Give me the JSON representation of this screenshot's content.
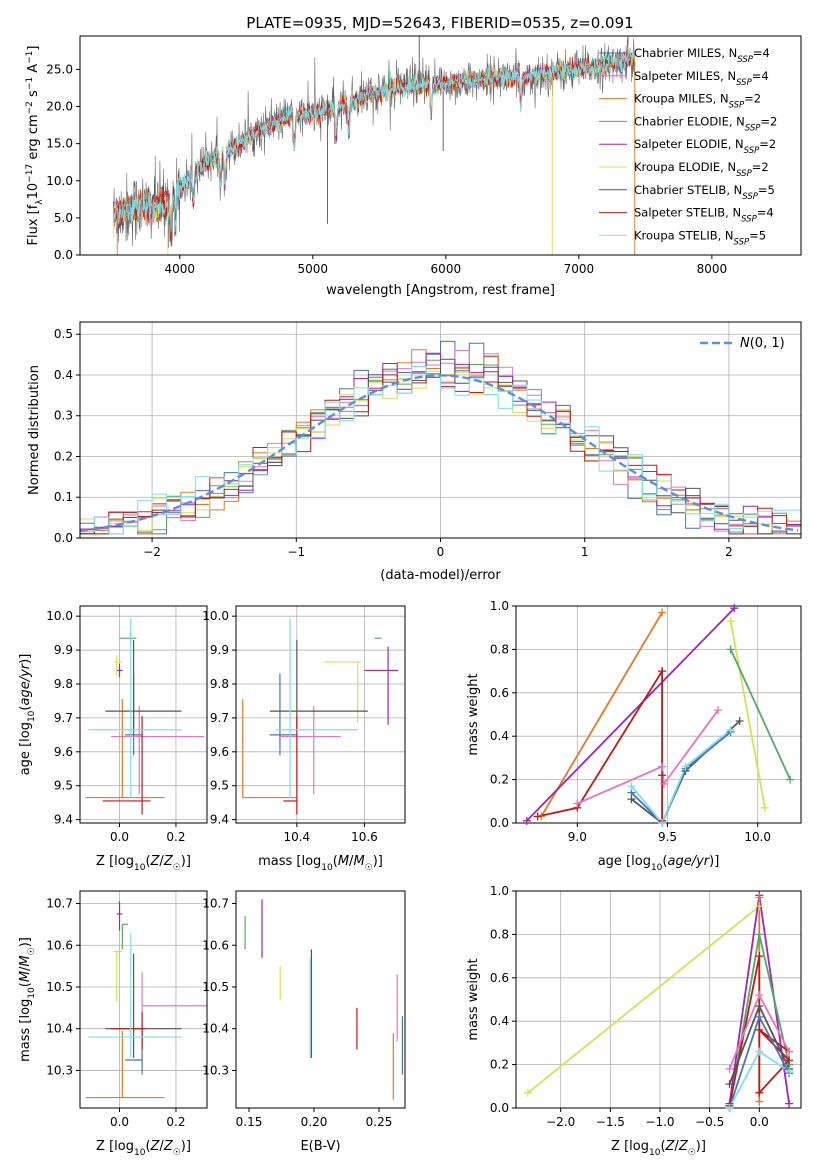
{
  "figure_title": "PLATE=0935, MJD=52643, FIBERID=0535, z=0.091",
  "colors": [
    "#4c72b0",
    "#dd8452",
    "#e07b2a",
    "#55a868",
    "#9c27b0",
    "#d4e157",
    "#555555",
    "#b71c1c",
    "#80deea"
  ],
  "pink": "#e377c2",
  "models": [
    {
      "name": "Chabrier MILES, N_SSP=4",
      "prefix": "Chabrier MILES, N",
      "sub": "SSP",
      "suffix": "=4",
      "color": "#4c72b0"
    },
    {
      "name": "Salpeter MILES, N_SSP=4",
      "prefix": "Salpeter MILES, N",
      "sub": "SSP",
      "suffix": "=4",
      "color": "#e377c2"
    },
    {
      "name": "Kroupa MILES, N_SSP=2",
      "prefix": "Kroupa MILES, N",
      "sub": "SSP",
      "suffix": "=2",
      "color": "#e07b2a"
    },
    {
      "name": "Chabrier ELODIE, N_SSP=2",
      "prefix": "Chabrier ELODIE, N",
      "sub": "SSP",
      "suffix": "=2",
      "color": "#55a868"
    },
    {
      "name": "Salpeter ELODIE, N_SSP=2",
      "prefix": "Salpeter ELODIE, N",
      "sub": "SSP",
      "suffix": "=2",
      "color": "#9c27b0"
    },
    {
      "name": "Kroupa ELODIE, N_SSP=2",
      "prefix": "Kroupa ELODIE, N",
      "sub": "SSP",
      "suffix": "=2",
      "color": "#d4e157"
    },
    {
      "name": "Chabrier STELIB, N_SSP=5",
      "prefix": "Chabrier STELIB, N",
      "sub": "SSP",
      "suffix": "=5",
      "color": "#555555"
    },
    {
      "name": "Salpeter STELIB, N_SSP=4",
      "prefix": "Salpeter STELIB, N",
      "sub": "SSP",
      "suffix": "=4",
      "color": "#b71c1c"
    },
    {
      "name": "Kroupa STELIB, N_SSP=5",
      "prefix": "Kroupa STELIB, N",
      "sub": "SSP",
      "suffix": "=5",
      "color": "#80deea"
    }
  ],
  "chart_data": [
    {
      "id": "spectrum",
      "type": "line",
      "xlabel": "wavelength [Angstrom, rest frame]",
      "ylabel": "Flux [f_λ 10^-17 erg cm^-2 s^-1 A^-1]",
      "xlim": [
        3250,
        8670
      ],
      "ylim": [
        0,
        29.5
      ],
      "xticks": [
        4000,
        5000,
        6000,
        7000,
        8000
      ],
      "yticks": [
        0,
        5,
        10,
        15,
        20,
        25
      ],
      "grid": false,
      "legend": "top-right",
      "continuum_x": [
        3500,
        3700,
        3900,
        4000,
        4200,
        4400,
        4600,
        4800,
        5000,
        5200,
        5400,
        5600,
        5800,
        6000,
        6200,
        6400,
        6600,
        6800,
        7000,
        7200,
        7400
      ],
      "continuum_y": [
        5.5,
        6.5,
        6.8,
        9.0,
        12.5,
        14.5,
        16.8,
        18.5,
        19.0,
        20.0,
        21.5,
        22.5,
        23.0,
        23.0,
        23.5,
        24.0,
        24.0,
        24.5,
        25.0,
        25.5,
        26.5
      ]
    },
    {
      "id": "residuals",
      "type": "histogram",
      "xlabel": "(data-model)/error",
      "ylabel": "Normed distribution",
      "xlim": [
        -2.5,
        2.5
      ],
      "ylim": [
        0,
        0.53
      ],
      "xticks": [
        -2,
        -1,
        0,
        1,
        2
      ],
      "yticks": [
        0.0,
        0.1,
        0.2,
        0.3,
        0.4,
        0.5
      ],
      "grid": true,
      "legend": "top-right",
      "legend_label": "N(0,1)",
      "bin_width": 0.1
    },
    {
      "id": "age_vs_Z",
      "type": "errorbar",
      "xlabel": "Z [log10(Z/Z☉)]",
      "ylabel": "age [log10(age/yr)]",
      "xlim": [
        -0.14,
        0.31
      ],
      "ylim": [
        9.39,
        10.03
      ],
      "xticks": [
        0.0,
        0.2
      ],
      "yticks": [
        9.4,
        9.5,
        9.6,
        9.7,
        9.8,
        9.9,
        10.0
      ],
      "grid": true,
      "points": [
        {
          "c": "#4c72b0",
          "x": 0.05,
          "xe": [
            0.03,
            0.03
          ],
          "y": 9.65,
          "ye": [
            0.06,
            0.18
          ]
        },
        {
          "c": "#e377c2",
          "x": 0.07,
          "xe": [
            0.1,
            0.23
          ],
          "y": 9.645,
          "ye": [
            0.17,
            0.09
          ]
        },
        {
          "c": "#e07b2a",
          "x": 0.01,
          "xe": [
            0.13,
            0.15
          ],
          "y": 9.465,
          "ye": [
            0.0,
            0.29
          ]
        },
        {
          "c": "#55a868",
          "x": 0.04,
          "xe": [
            0.04,
            0.02
          ],
          "y": 9.935,
          "ye": [
            0.02,
            0.02
          ]
        },
        {
          "c": "#9c27b0",
          "x": 0.0,
          "xe": [
            0.01,
            0.01
          ],
          "y": 9.84,
          "ye": [
            0.02,
            0.02
          ]
        },
        {
          "c": "#d4e157",
          "x": -0.01,
          "xe": [
            0.01,
            0.02
          ],
          "y": 9.865,
          "ye": [
            0.04,
            0.02
          ]
        },
        {
          "c": "#555555",
          "x": 0.05,
          "xe": [
            0.1,
            0.17
          ],
          "y": 9.72,
          "ye": [
            0.06,
            0.21
          ]
        },
        {
          "c": "#b71c1c",
          "x": 0.08,
          "xe": [
            0.14,
            0.03
          ],
          "y": 9.455,
          "ye": [
            0.04,
            0.25
          ]
        },
        {
          "c": "#80deea",
          "x": 0.04,
          "xe": [
            0.15,
            0.18
          ],
          "y": 9.665,
          "ye": [
            0.2,
            0.33
          ]
        }
      ]
    },
    {
      "id": "age_vs_mass",
      "type": "errorbar",
      "xlabel": "mass [log10(M/M☉)]",
      "ylabel": "",
      "xlim": [
        10.22,
        10.72
      ],
      "ylim": [
        9.39,
        10.03
      ],
      "xticks": [
        10.4,
        10.6
      ],
      "yticks": [
        9.4,
        9.5,
        9.6,
        9.7,
        9.8,
        9.9,
        10.0
      ],
      "grid": true,
      "points": [
        {
          "c": "#4c72b0",
          "x": 10.35,
          "xe": [
            0.03,
            0.05
          ],
          "y": 9.65,
          "ye": [
            0.06,
            0.18
          ]
        },
        {
          "c": "#e377c2",
          "x": 10.45,
          "xe": [
            0.1,
            0.08
          ],
          "y": 9.645,
          "ye": [
            0.17,
            0.09
          ]
        },
        {
          "c": "#e07b2a",
          "x": 10.24,
          "xe": [
            0.0,
            0.16
          ],
          "y": 9.465,
          "ye": [
            0.0,
            0.29
          ]
        },
        {
          "c": "#55a868",
          "x": 10.65,
          "xe": [
            0.02,
            0.0
          ],
          "y": 9.935,
          "ye": [
            0.0,
            0.0
          ]
        },
        {
          "c": "#9c27b0",
          "x": 10.67,
          "xe": [
            0.07,
            0.03
          ],
          "y": 9.84,
          "ye": [
            0.16,
            0.07
          ]
        },
        {
          "c": "#d4e157",
          "x": 10.58,
          "xe": [
            0.1,
            0.01
          ],
          "y": 9.865,
          "ye": [
            0.18,
            0.0
          ]
        },
        {
          "c": "#555555",
          "x": 10.4,
          "xe": [
            0.08,
            0.21
          ],
          "y": 9.72,
          "ye": [
            0.06,
            0.21
          ]
        },
        {
          "c": "#b71c1c",
          "x": 10.4,
          "xe": [
            0.04,
            0.0
          ],
          "y": 9.455,
          "ye": [
            0.04,
            0.25
          ]
        },
        {
          "c": "#80deea",
          "x": 10.38,
          "xe": [
            0.04,
            0.2
          ],
          "y": 9.665,
          "ye": [
            0.2,
            0.33
          ]
        }
      ]
    },
    {
      "id": "weight_vs_age",
      "type": "line",
      "xlabel": "age [log10(age/yr)]",
      "ylabel": "mass weight",
      "xlim": [
        8.66,
        10.24
      ],
      "ylim": [
        0.0,
        1.0
      ],
      "xticks": [
        9.0,
        9.5,
        10.0
      ],
      "yticks": [
        0.0,
        0.2,
        0.4,
        0.6,
        0.8,
        1.0
      ],
      "grid": true,
      "series": [
        {
          "c": "#e07b2a",
          "x": [
            8.8,
            9.47
          ],
          "y": [
            0.03,
            0.97
          ]
        },
        {
          "c": "#9c27b0",
          "x": [
            8.72,
            9.87
          ],
          "y": [
            0.01,
            0.99
          ]
        },
        {
          "c": "#d4e157",
          "x": [
            9.85,
            10.04
          ],
          "y": [
            0.93,
            0.07
          ]
        },
        {
          "c": "#55a868",
          "x": [
            9.85,
            10.18
          ],
          "y": [
            0.8,
            0.2
          ]
        },
        {
          "c": "#b71c1c",
          "x": [
            8.78,
            9.0,
            9.47,
            9.47,
            9.47
          ],
          "y": [
            0.03,
            0.07,
            0.7,
            0.22,
            0.01
          ]
        },
        {
          "c": "#e377c2",
          "x": [
            9.0,
            9.47,
            9.48,
            9.78
          ],
          "y": [
            0.09,
            0.26,
            0.18,
            0.52
          ]
        },
        {
          "c": "#555555",
          "x": [
            9.3,
            9.47,
            9.6,
            9.9
          ],
          "y": [
            0.11,
            0.0,
            0.24,
            0.47
          ]
        },
        {
          "c": "#4c72b0",
          "x": [
            9.3,
            9.47,
            9.6,
            9.85
          ],
          "y": [
            0.14,
            0.0,
            0.25,
            0.42
          ]
        },
        {
          "c": "#80deea",
          "x": [
            9.3,
            9.47,
            9.6,
            9.85
          ],
          "y": [
            0.17,
            0.0,
            0.26,
            0.43
          ]
        }
      ]
    },
    {
      "id": "mass_vs_Z",
      "type": "errorbar",
      "xlabel": "Z [log10(Z/Z☉)]",
      "ylabel": "mass [log10(M/M☉)]",
      "xlim": [
        -0.14,
        0.31
      ],
      "ylim": [
        10.21,
        10.73
      ],
      "xticks": [
        0.0,
        0.2
      ],
      "yticks": [
        10.3,
        10.4,
        10.5,
        10.6,
        10.7
      ],
      "grid": true,
      "points": [
        {
          "c": "#4c72b0",
          "x": 0.05,
          "xe": [
            0.03,
            0.03
          ],
          "y": 10.325,
          "ye": [
            0.0,
            0.0
          ]
        },
        {
          "c": "#4c72b0",
          "x": 0.08,
          "xe": [
            0.0,
            0.0
          ],
          "y": 10.35,
          "ye": [
            0.06,
            0.06
          ]
        },
        {
          "c": "#e377c2",
          "x": 0.08,
          "xe": [
            0.0,
            0.23
          ],
          "y": 10.455,
          "ye": [
            0.09,
            0.08
          ]
        },
        {
          "c": "#e07b2a",
          "x": 0.01,
          "xe": [
            0.13,
            0.15
          ],
          "y": 10.235,
          "ye": [
            0.0,
            0.16
          ]
        },
        {
          "c": "#55a868",
          "x": 0.01,
          "xe": [
            0.0,
            0.02
          ],
          "y": 10.65,
          "ye": [
            0.06,
            0.0
          ]
        },
        {
          "c": "#9c27b0",
          "x": 0.0,
          "xe": [
            0.01,
            0.01
          ],
          "y": 10.675,
          "ye": [
            0.04,
            0.03
          ]
        },
        {
          "c": "#d4e157",
          "x": -0.01,
          "xe": [
            0.01,
            0.02
          ],
          "y": 10.585,
          "ye": [
            0.12,
            0.0
          ]
        },
        {
          "c": "#555555",
          "x": 0.05,
          "xe": [
            0.1,
            0.17
          ],
          "y": 10.4,
          "ye": [
            0.07,
            0.18
          ]
        },
        {
          "c": "#b71c1c",
          "x": 0.05,
          "xe": [
            0.08,
            0.04
          ],
          "y": 10.4,
          "ye": [
            0.0,
            0.0
          ]
        },
        {
          "c": "#b71c1c",
          "x": 0.08,
          "xe": [
            0.0,
            0.0
          ],
          "y": 10.4,
          "ye": [
            0.05,
            0.04
          ]
        },
        {
          "c": "#80deea",
          "x": 0.04,
          "xe": [
            0.15,
            0.18
          ],
          "y": 10.38,
          "ye": [
            0.05,
            0.25
          ]
        }
      ]
    },
    {
      "id": "mass_vs_ebv",
      "type": "errorbar",
      "xlabel": "E(B-V)",
      "ylabel": "",
      "xlim": [
        0.14,
        0.27
      ],
      "ylim": [
        10.21,
        10.73
      ],
      "xticks": [
        0.15,
        0.2,
        0.25
      ],
      "yticks": [
        10.3,
        10.4,
        10.5,
        10.6,
        10.7
      ],
      "grid": false,
      "points": [
        {
          "c": "#55a868",
          "x": 0.147,
          "xe": [
            0,
            0
          ],
          "y": 10.63,
          "ye": [
            0.04,
            0.04
          ]
        },
        {
          "c": "#9c27b0",
          "x": 0.16,
          "xe": [
            0,
            0
          ],
          "y": 10.64,
          "ye": [
            0.07,
            0.07
          ]
        },
        {
          "c": "#d4e157",
          "x": 0.174,
          "xe": [
            0,
            0
          ],
          "y": 10.51,
          "ye": [
            0.04,
            0.04
          ]
        },
        {
          "c": "#555555",
          "x": 0.198,
          "xe": [
            0,
            0
          ],
          "y": 10.46,
          "ye": [
            0.13,
            0.13
          ]
        },
        {
          "c": "#80deea",
          "x": 0.197,
          "xe": [
            0,
            0
          ],
          "y": 10.45,
          "ye": [
            0.12,
            0.12
          ]
        },
        {
          "c": "#b71c1c",
          "x": 0.233,
          "xe": [
            0,
            0
          ],
          "y": 10.4,
          "ye": [
            0.05,
            0.05
          ]
        },
        {
          "c": "#e07b2a",
          "x": 0.261,
          "xe": [
            0,
            0
          ],
          "y": 10.31,
          "ye": [
            0.08,
            0.08
          ]
        },
        {
          "c": "#e377c2",
          "x": 0.264,
          "xe": [
            0,
            0
          ],
          "y": 10.45,
          "ye": [
            0.08,
            0.08
          ]
        },
        {
          "c": "#4c72b0",
          "x": 0.268,
          "xe": [
            0,
            0
          ],
          "y": 10.36,
          "ye": [
            0.07,
            0.07
          ]
        }
      ]
    },
    {
      "id": "weight_vs_Z",
      "type": "line",
      "xlabel": "Z [log10(Z/Z☉)]",
      "ylabel": "mass weight",
      "xlim": [
        -2.45,
        0.42
      ],
      "ylim": [
        0.0,
        1.0
      ],
      "xticks": [
        -2.0,
        -1.5,
        -1.0,
        -0.5,
        0.0
      ],
      "yticks": [
        0.0,
        0.2,
        0.4,
        0.6,
        0.8,
        1.0
      ],
      "grid": true,
      "series": [
        {
          "c": "#d4e157",
          "x": [
            -2.33,
            0.0
          ],
          "y": [
            0.07,
            0.93
          ]
        },
        {
          "c": "#9c27b0",
          "x": [
            -0.3,
            0.0,
            0.3
          ],
          "y": [
            0.02,
            0.98,
            0.02
          ]
        },
        {
          "c": "#e07b2a",
          "x": [
            0.0,
            0.0
          ],
          "y": [
            0.03,
            0.97
          ]
        },
        {
          "c": "#55a868",
          "x": [
            -0.3,
            0.0,
            0.3
          ],
          "y": [
            0.0,
            0.8,
            0.2
          ]
        },
        {
          "c": "#b71c1c",
          "x": [
            -0.3,
            0.0,
            0.0,
            0.3,
            0.0,
            0.3
          ],
          "y": [
            0.01,
            0.7,
            0.07,
            0.22,
            0.36,
            0.26
          ]
        },
        {
          "c": "#e377c2",
          "x": [
            -0.3,
            0.0,
            0.3
          ],
          "y": [
            0.18,
            0.52,
            0.26
          ]
        },
        {
          "c": "#555555",
          "x": [
            -0.3,
            0.0,
            0.3
          ],
          "y": [
            0.11,
            0.47,
            0.18
          ]
        },
        {
          "c": "#4c72b0",
          "x": [
            -0.3,
            0.0,
            0.3
          ],
          "y": [
            0.0,
            0.42,
            0.16
          ]
        },
        {
          "c": "#80deea",
          "x": [
            -0.3,
            0.0,
            0.3
          ],
          "y": [
            0.0,
            0.26,
            0.17
          ]
        }
      ]
    }
  ]
}
